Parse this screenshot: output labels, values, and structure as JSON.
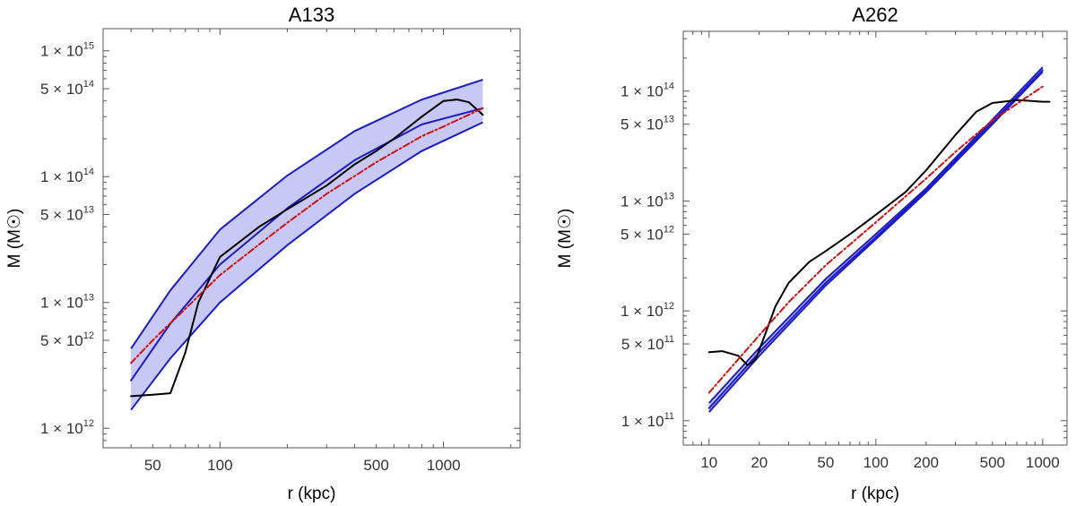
{
  "chart_data": [
    {
      "type": "line",
      "title": "A133",
      "xlabel": "r (kpc)",
      "ylabel": "M (M☉)",
      "xscale": "log",
      "yscale": "log",
      "xlim": [
        30,
        2200
      ],
      "ylim": [
        700000000000.0,
        1500000000000000.0
      ],
      "xticks": [
        {
          "value": 50,
          "label": "50"
        },
        {
          "value": 100,
          "label": "100"
        },
        {
          "value": 500,
          "label": "500"
        },
        {
          "value": 1000,
          "label": "1000"
        }
      ],
      "yticks": [
        {
          "value": 1000000000000.0,
          "mant": "1",
          "exp": "12"
        },
        {
          "value": 5000000000000.0,
          "mant": "5",
          "exp": "12"
        },
        {
          "value": 10000000000000.0,
          "mant": "1",
          "exp": "13"
        },
        {
          "value": 50000000000000.0,
          "mant": "5",
          "exp": "13"
        },
        {
          "value": 100000000000000.0,
          "mant": "1",
          "exp": "14"
        },
        {
          "value": 500000000000000.0,
          "mant": "5",
          "exp": "14"
        },
        {
          "value": 1000000000000000.0,
          "mant": "1",
          "exp": "15"
        }
      ],
      "band": {
        "upper": [
          [
            40,
            4300000000000.0
          ],
          [
            60,
            12500000000000.0
          ],
          [
            100,
            38000000000000.0
          ],
          [
            200,
            102000000000000.0
          ],
          [
            400,
            230000000000000.0
          ],
          [
            800,
            410000000000000.0
          ],
          [
            1500,
            590000000000000.0
          ]
        ],
        "lower": [
          [
            40,
            1400000000000.0
          ],
          [
            60,
            3600000000000.0
          ],
          [
            100,
            10000000000000.0
          ],
          [
            200,
            28500000000000.0
          ],
          [
            400,
            73000000000000.0
          ],
          [
            800,
            160000000000000.0
          ],
          [
            1500,
            270000000000000.0
          ]
        ]
      },
      "series": [
        {
          "style": "blue-solid",
          "points": [
            [
              40,
              2400000000000.0
            ],
            [
              60,
              6800000000000.0
            ],
            [
              100,
              20000000000000.0
            ],
            [
              200,
              56000000000000.0
            ],
            [
              400,
              135000000000000.0
            ],
            [
              800,
              260000000000000.0
            ],
            [
              1500,
              350000000000000.0
            ]
          ]
        },
        {
          "style": "black-solid",
          "points": [
            [
              40,
              1800000000000.0
            ],
            [
              50,
              1850000000000.0
            ],
            [
              60,
              1900000000000.0
            ],
            [
              70,
              4000000000000.0
            ],
            [
              80,
              10000000000000.0
            ],
            [
              100,
              23000000000000.0
            ],
            [
              150,
              40000000000000.0
            ],
            [
              200,
              55000000000000.0
            ],
            [
              300,
              85000000000000.0
            ],
            [
              400,
              125000000000000.0
            ],
            [
              500,
              160000000000000.0
            ],
            [
              600,
              200000000000000.0
            ],
            [
              800,
              300000000000000.0
            ],
            [
              1000,
              400000000000000.0
            ],
            [
              1150,
              410000000000000.0
            ],
            [
              1300,
              390000000000000.0
            ],
            [
              1500,
              310000000000000.0
            ]
          ]
        },
        {
          "style": "red-dashdot",
          "points": [
            [
              40,
              3300000000000.0
            ],
            [
              50,
              5000000000000.0
            ],
            [
              70,
              8900000000000.0
            ],
            [
              100,
              16500000000000.0
            ],
            [
              150,
              29000000000000.0
            ],
            [
              200,
              43000000000000.0
            ],
            [
              300,
              73000000000000.0
            ],
            [
              500,
              130000000000000.0
            ],
            [
              800,
              210000000000000.0
            ],
            [
              1000,
              250000000000000.0
            ],
            [
              1500,
              350000000000000.0
            ]
          ]
        }
      ]
    },
    {
      "type": "line",
      "title": "A262",
      "xlabel": "r (kpc)",
      "ylabel": "M (M☉)",
      "xscale": "log",
      "yscale": "log",
      "xlim": [
        7,
        1400
      ],
      "ylim": [
        60000000000.0,
        350000000000000.0
      ],
      "xticks": [
        {
          "value": 10,
          "label": "10"
        },
        {
          "value": 20,
          "label": "20"
        },
        {
          "value": 50,
          "label": "50"
        },
        {
          "value": 100,
          "label": "100"
        },
        {
          "value": 200,
          "label": "200"
        },
        {
          "value": 500,
          "label": "500"
        },
        {
          "value": 1000,
          "label": "1000"
        }
      ],
      "yticks": [
        {
          "value": 100000000000.0,
          "mant": "1",
          "exp": "11"
        },
        {
          "value": 500000000000.0,
          "mant": "5",
          "exp": "11"
        },
        {
          "value": 1000000000000.0,
          "mant": "1",
          "exp": "12"
        },
        {
          "value": 5000000000000.0,
          "mant": "5",
          "exp": "12"
        },
        {
          "value": 10000000000000.0,
          "mant": "1",
          "exp": "13"
        },
        {
          "value": 50000000000000.0,
          "mant": "5",
          "exp": "13"
        },
        {
          "value": 100000000000000.0,
          "mant": "1",
          "exp": "14"
        }
      ],
      "band": {
        "upper": [
          [
            10,
            145000000000.0
          ],
          [
            20,
            460000000000.0
          ],
          [
            50,
            1950000000000.0
          ],
          [
            100,
            5000000000000.0
          ],
          [
            200,
            13000000000000.0
          ],
          [
            500,
            55000000000000.0
          ],
          [
            1000,
            165000000000000.0
          ]
        ],
        "lower": [
          [
            10,
            120000000000.0
          ],
          [
            20,
            390000000000.0
          ],
          [
            50,
            1700000000000.0
          ],
          [
            100,
            4500000000000.0
          ],
          [
            200,
            12000000000000.0
          ],
          [
            500,
            50000000000000.0
          ],
          [
            1000,
            150000000000000.0
          ]
        ]
      },
      "series": [
        {
          "style": "blue-solid",
          "points": [
            [
              10,
              130000000000.0
            ],
            [
              20,
              420000000000.0
            ],
            [
              50,
              1800000000000.0
            ],
            [
              100,
              4700000000000.0
            ],
            [
              200,
              12500000000000.0
            ],
            [
              500,
              52000000000000.0
            ],
            [
              1000,
              155000000000000.0
            ]
          ]
        },
        {
          "style": "black-solid",
          "points": [
            [
              10,
              420000000000.0
            ],
            [
              12,
              430000000000.0
            ],
            [
              15,
              390000000000.0
            ],
            [
              17,
              320000000000.0
            ],
            [
              19,
              360000000000.0
            ],
            [
              22,
              650000000000.0
            ],
            [
              25,
              1100000000000.0
            ],
            [
              30,
              1800000000000.0
            ],
            [
              40,
              2800000000000.0
            ],
            [
              50,
              3500000000000.0
            ],
            [
              70,
              5000000000000.0
            ],
            [
              100,
              7500000000000.0
            ],
            [
              150,
              12000000000000.0
            ],
            [
              200,
              19000000000000.0
            ],
            [
              300,
              40000000000000.0
            ],
            [
              400,
              65000000000000.0
            ],
            [
              500,
              78000000000000.0
            ],
            [
              700,
              83000000000000.0
            ],
            [
              1000,
              80000000000000.0
            ],
            [
              1100,
              80000000000000.0
            ]
          ]
        },
        {
          "style": "red-dashdot",
          "points": [
            [
              10,
              180000000000.0
            ],
            [
              20,
              600000000000.0
            ],
            [
              30,
              1200000000000.0
            ],
            [
              50,
              2600000000000.0
            ],
            [
              100,
              6400000000000.0
            ],
            [
              200,
              16000000000000.0
            ],
            [
              300,
              28000000000000.0
            ],
            [
              500,
              54000000000000.0
            ],
            [
              800,
              88000000000000.0
            ],
            [
              1000,
              110000000000000.0
            ]
          ]
        }
      ]
    }
  ]
}
